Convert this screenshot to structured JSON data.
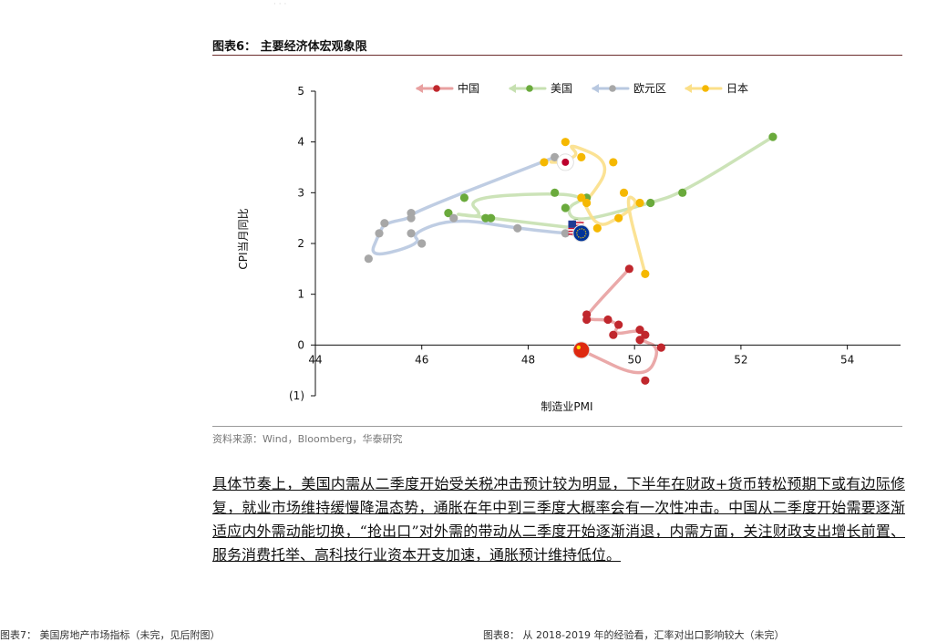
{
  "header": {
    "faint_text": "·  ·  ·"
  },
  "figure": {
    "title": "图表6： 主要经济体宏观象限",
    "source": "资料来源：Wind，Bloomberg，华泰研究"
  },
  "chart_data": {
    "type": "scatter",
    "xlabel": "制造业PMI",
    "ylabel": "CPI当月同比",
    "xlim": [
      44,
      55
    ],
    "ylim": [
      -1,
      5
    ],
    "x_ticks": [
      "44",
      "46",
      "48",
      "50",
      "52",
      "54"
    ],
    "y_ticks": [
      "(1)",
      "0",
      "1",
      "2",
      "3",
      "4",
      "5"
    ],
    "y_tick_values": [
      -1,
      0,
      1,
      2,
      3,
      4,
      5
    ],
    "x_tick_values": [
      44,
      46,
      48,
      50,
      52,
      54
    ],
    "legend": "top",
    "series": [
      {
        "name": "中国",
        "color": "#c0272d",
        "trail": "#e8a0a0",
        "flag": "china-flag-icon",
        "points": [
          [
            49.9,
            1.5
          ],
          [
            49.1,
            0.6
          ],
          [
            49.1,
            0.5
          ],
          [
            49.5,
            0.5
          ],
          [
            49.7,
            0.4
          ],
          [
            49.6,
            0.2
          ],
          [
            50.1,
            0.3
          ],
          [
            50.2,
            0.2
          ],
          [
            50.1,
            0.1
          ],
          [
            50.5,
            -0.05
          ],
          [
            50.2,
            -0.7
          ],
          [
            49.0,
            -0.1
          ]
        ]
      },
      {
        "name": "美国",
        "color": "#6aaa3c",
        "trail": "#c6e0b0",
        "flag": "usa-flag-icon",
        "points": [
          [
            52.6,
            4.1
          ],
          [
            50.9,
            3.0
          ],
          [
            50.3,
            2.8
          ],
          [
            48.9,
            2.4
          ],
          [
            48.7,
            2.7
          ],
          [
            49.1,
            2.9
          ],
          [
            48.5,
            3.0
          ],
          [
            46.8,
            2.9
          ],
          [
            47.2,
            2.5
          ],
          [
            46.5,
            2.6
          ],
          [
            47.3,
            2.5
          ],
          [
            48.9,
            2.3
          ]
        ]
      },
      {
        "name": "欧元区",
        "color": "#a7a7a7",
        "trail": "#b8c8e0",
        "flag": "eu-flag-icon",
        "points": [
          [
            48.5,
            3.7
          ],
          [
            45.8,
            2.6
          ],
          [
            45.8,
            2.5
          ],
          [
            45.3,
            2.4
          ],
          [
            45.2,
            2.2
          ],
          [
            45.0,
            1.7
          ],
          [
            46.0,
            2.0
          ],
          [
            45.8,
            2.2
          ],
          [
            46.6,
            2.5
          ],
          [
            47.8,
            2.3
          ],
          [
            48.7,
            2.2
          ],
          [
            49.0,
            2.2
          ]
        ]
      },
      {
        "name": "日本",
        "color": "#f5b800",
        "trail": "#fbdf88",
        "flag": "japan-flag-icon",
        "points": [
          [
            50.2,
            1.4
          ],
          [
            49.8,
            3.0
          ],
          [
            50.1,
            2.8
          ],
          [
            49.7,
            2.5
          ],
          [
            49.3,
            2.3
          ],
          [
            49.0,
            2.9
          ],
          [
            49.1,
            2.8
          ],
          [
            49.6,
            3.6
          ],
          [
            48.7,
            4.0
          ],
          [
            49.0,
            3.7
          ],
          [
            48.3,
            3.6
          ],
          [
            48.7,
            3.6
          ]
        ]
      }
    ]
  },
  "body": {
    "paragraph": "具体节奏上，美国内需从二季度开始受关税冲击预计较为明显，下半年在财政+货币转松预期下或有边际修复，就业市场维持缓慢降温态势，通胀在年中到三季度大概率会有一次性冲击。中国从二季度开始需要逐渐适应内外需动能切换，“抢出口”对外需的带动从二季度开始逐渐消退，内需方面，关注财政支出增长前置、服务消费托举、高科技行业资本开支加速，通胀预计维持低位。"
  },
  "footer": {
    "left_cut": "图表7： 美国房地产市场指标（未完，见后附图）",
    "right_cut": "图表8： 从 2018-2019 年的经验看，汇率对出口影响较大（未完）"
  }
}
